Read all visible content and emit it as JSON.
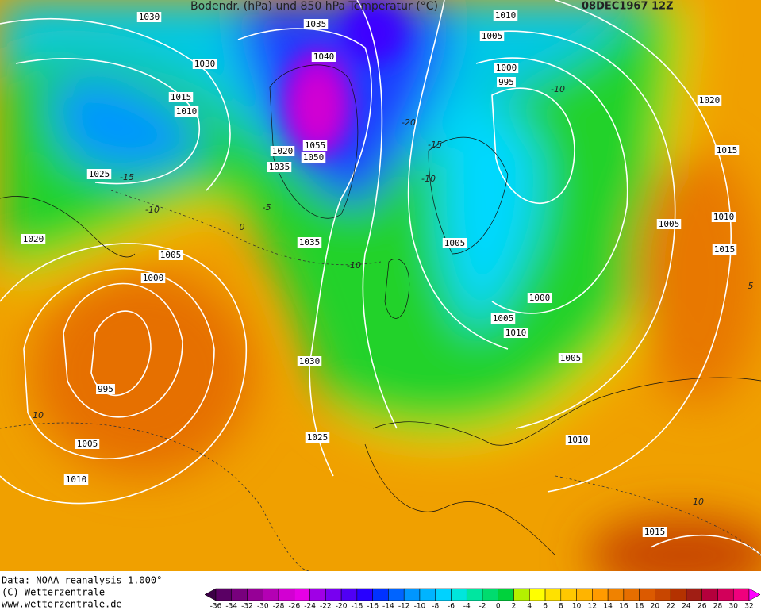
{
  "header": {
    "title": "Bodendr. (hPa) und 850 hPa Temperatur (°C)",
    "date": "08DEC1967 12Z"
  },
  "isobar_labels": [
    "1030",
    "1035",
    "1040",
    "1030",
    "1015",
    "1010",
    "1025",
    "1020",
    "1055",
    "1050",
    "1035",
    "1020",
    "1005",
    "1000",
    "995",
    "1005",
    "1010",
    "1035",
    "1030",
    "1025",
    "1010",
    "1005",
    "1000",
    "995",
    "1020",
    "1015",
    "1010",
    "1005",
    "1015",
    "1005",
    "1000",
    "1005",
    "1010",
    "1005",
    "1010",
    "1015"
  ],
  "temperature_labels": [
    "-15",
    "-15",
    "-10",
    "-10",
    "-10",
    "-20",
    "-10",
    "-5",
    "0",
    "10",
    "10",
    "5"
  ],
  "footer": [
    "Data: NOAA reanalysis 1.000°",
    "(C) Wetterzentrale",
    "www.wetterzentrale.de"
  ],
  "colorbar": {
    "ticks": [
      -36,
      -34,
      -32,
      -30,
      -28,
      -26,
      -24,
      -22,
      -20,
      -18,
      -16,
      -14,
      -12,
      -10,
      -8,
      -6,
      -4,
      -2,
      0,
      2,
      4,
      6,
      8,
      10,
      12,
      14,
      16,
      18,
      20,
      22,
      24,
      26,
      28,
      30,
      32
    ],
    "colors": [
      "#3c0046",
      "#5a0064",
      "#78007d",
      "#960096",
      "#b400b4",
      "#d200d2",
      "#e600e6",
      "#a000e6",
      "#7800f0",
      "#5000f5",
      "#2800ff",
      "#0032ff",
      "#0064ff",
      "#0096ff",
      "#00b4ff",
      "#00d2ff",
      "#00e6dc",
      "#00e6a0",
      "#00dc6e",
      "#00d23c",
      "#b4f000",
      "#ffff00",
      "#ffe100",
      "#ffc800",
      "#ffb400",
      "#ff9b00",
      "#f08200",
      "#e66e00",
      "#dc5a00",
      "#c84600",
      "#b43200",
      "#a01e14",
      "#b4003c",
      "#d2005a",
      "#f0007d",
      "#ff00ff"
    ]
  }
}
